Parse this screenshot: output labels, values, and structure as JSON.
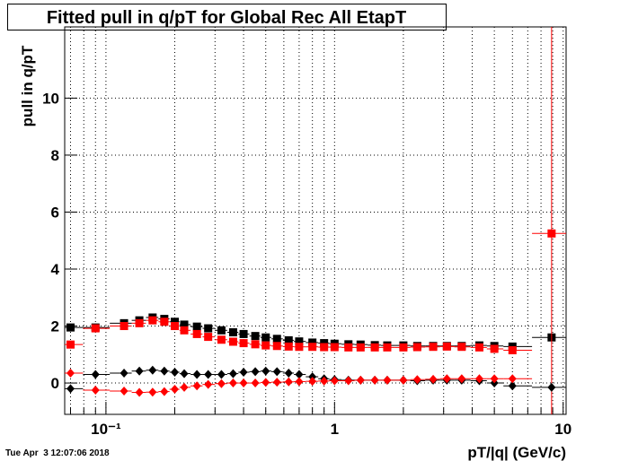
{
  "chart_data": {
    "type": "scatter",
    "title": "Fitted pull in q/pT for Global Rec All EtapT",
    "xlabel": "pT/|q| (GeV/c)",
    "ylabel": "pull in q/pT",
    "timestamp": "Tue Apr  3 12:07:06 2018",
    "xscale": "log",
    "grid": true,
    "xlim": [
      0.066,
      10.3
    ],
    "ylim": [
      -1.1,
      12.5
    ],
    "xticks": [
      {
        "value": 0.1,
        "label": "10⁻¹"
      },
      1,
      10
    ],
    "xminorticks": [
      0.07,
      0.08,
      0.09,
      0.2,
      0.3,
      0.4,
      0.5,
      0.6,
      0.7,
      0.8,
      0.9,
      2,
      3,
      4,
      5,
      6,
      7,
      8,
      9
    ],
    "yticks": [
      0,
      2,
      4,
      6,
      8,
      10
    ],
    "x": [
      0.07,
      0.09,
      0.12,
      0.14,
      0.16,
      0.18,
      0.2,
      0.22,
      0.25,
      0.28,
      0.32,
      0.36,
      0.4,
      0.45,
      0.5,
      0.56,
      0.63,
      0.7,
      0.8,
      0.9,
      1.0,
      1.15,
      1.3,
      1.5,
      1.7,
      2.0,
      2.3,
      2.7,
      3.1,
      3.6,
      4.3,
      5.0,
      6.0,
      8.9
    ],
    "series": [
      {
        "color": "#000000",
        "marker": "square",
        "values": [
          1.95,
          1.95,
          2.1,
          2.2,
          2.3,
          2.25,
          2.15,
          2.05,
          1.98,
          1.92,
          1.85,
          1.78,
          1.72,
          1.65,
          1.6,
          1.55,
          1.5,
          1.46,
          1.42,
          1.4,
          1.38,
          1.36,
          1.35,
          1.33,
          1.32,
          1.32,
          1.3,
          1.3,
          1.3,
          1.3,
          1.32,
          1.3,
          1.28,
          1.6
        ]
      },
      {
        "color": "#ff0000",
        "marker": "square",
        "values": [
          1.35,
          1.92,
          2.0,
          2.1,
          2.2,
          2.15,
          2.0,
          1.85,
          1.72,
          1.62,
          1.52,
          1.45,
          1.4,
          1.36,
          1.32,
          1.3,
          1.28,
          1.27,
          1.27,
          1.26,
          1.26,
          1.25,
          1.25,
          1.25,
          1.25,
          1.25,
          1.26,
          1.27,
          1.28,
          1.27,
          1.25,
          1.2,
          1.15,
          5.25
        ]
      },
      {
        "color": "#000000",
        "marker": "diamond",
        "values": [
          -0.2,
          0.3,
          0.35,
          0.42,
          0.45,
          0.42,
          0.38,
          0.33,
          0.3,
          0.3,
          0.3,
          0.33,
          0.38,
          0.4,
          0.42,
          0.4,
          0.35,
          0.3,
          0.22,
          0.15,
          0.12,
          0.1,
          0.1,
          0.1,
          0.1,
          0.1,
          0.08,
          0.1,
          0.1,
          0.1,
          0.08,
          0.0,
          -0.1,
          -0.15
        ]
      },
      {
        "color": "#ff0000",
        "marker": "diamond",
        "values": [
          0.35,
          -0.25,
          -0.28,
          -0.33,
          -0.32,
          -0.3,
          -0.22,
          -0.15,
          -0.1,
          -0.05,
          -0.02,
          0,
          0,
          0,
          0.02,
          0.03,
          0.04,
          0.05,
          0.06,
          0.07,
          0.08,
          0.08,
          0.1,
          0.1,
          0.1,
          0.1,
          0.12,
          0.13,
          0.15,
          0.15,
          0.15,
          0.15,
          0.15,
          null
        ]
      }
    ]
  }
}
